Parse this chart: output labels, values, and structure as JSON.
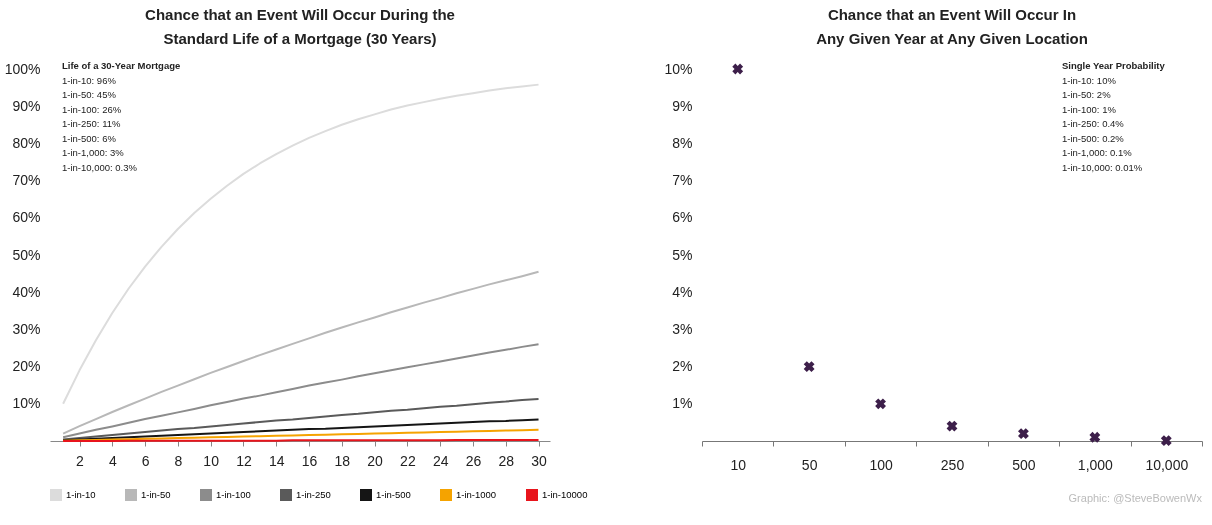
{
  "chart_data": [
    {
      "type": "line",
      "title": "Chance that an Event Will Occur During the\nStandard Life of a Mortgage (30 Years)",
      "x": [
        1,
        2,
        3,
        4,
        5,
        6,
        7,
        8,
        9,
        10,
        11,
        12,
        13,
        14,
        15,
        16,
        17,
        18,
        19,
        20,
        21,
        22,
        23,
        24,
        25,
        26,
        27,
        28,
        29,
        30
      ],
      "series": [
        {
          "name": "1-in-10",
          "color": "#dcdcdc",
          "values": [
            10,
            19,
            27.1,
            34.4,
            41,
            46.9,
            52.2,
            57,
            61.3,
            65.1,
            68.6,
            71.8,
            74.6,
            77.1,
            79.4,
            81.5,
            83.3,
            85,
            86.5,
            87.8,
            89.1,
            90.2,
            91.1,
            92,
            92.8,
            93.5,
            94.2,
            94.8,
            95.3,
            95.8
          ]
        },
        {
          "name": "1-in-50",
          "color": "#b8b8b8",
          "values": [
            2,
            4,
            5.9,
            7.8,
            9.6,
            11.4,
            13.2,
            14.9,
            16.6,
            18.3,
            19.9,
            21.5,
            23.1,
            24.6,
            26.1,
            27.6,
            29.1,
            30.5,
            31.9,
            33.2,
            34.6,
            35.9,
            37.2,
            38.4,
            39.7,
            40.9,
            42.1,
            43.2,
            44.3,
            45.5
          ]
        },
        {
          "name": "1-in-100",
          "color": "#8c8c8c",
          "values": [
            1,
            2,
            3,
            3.9,
            4.9,
            5.9,
            6.8,
            7.7,
            8.6,
            9.6,
            10.5,
            11.4,
            12.2,
            13.1,
            14,
            14.9,
            15.7,
            16.5,
            17.4,
            18.2,
            19,
            19.8,
            20.6,
            21.4,
            22.2,
            23,
            23.8,
            24.5,
            25.3,
            26
          ]
        },
        {
          "name": "1-in-250",
          "color": "#5a5a5a",
          "values": [
            0.4,
            0.8,
            1.2,
            1.6,
            2,
            2.4,
            2.8,
            3.2,
            3.5,
            3.9,
            4.3,
            4.7,
            5.1,
            5.5,
            5.8,
            6.2,
            6.6,
            7,
            7.3,
            7.7,
            8.1,
            8.4,
            8.8,
            9.2,
            9.5,
            9.9,
            10.3,
            10.6,
            11,
            11.3
          ]
        },
        {
          "name": "1-in-500",
          "color": "#151515",
          "values": [
            0.2,
            0.4,
            0.6,
            0.8,
            1,
            1.2,
            1.4,
            1.6,
            1.8,
            2,
            2.2,
            2.4,
            2.6,
            2.8,
            3,
            3.2,
            3.3,
            3.5,
            3.7,
            3.9,
            4.1,
            4.3,
            4.5,
            4.7,
            4.9,
            5.1,
            5.3,
            5.4,
            5.6,
            5.8
          ]
        },
        {
          "name": "1-in-1000",
          "color": "#f5a300",
          "values": [
            0.1,
            0.2,
            0.3,
            0.4,
            0.5,
            0.6,
            0.7,
            0.8,
            0.9,
            1,
            1.1,
            1.2,
            1.3,
            1.4,
            1.5,
            1.6,
            1.7,
            1.8,
            1.9,
            2,
            2.1,
            2.2,
            2.3,
            2.4,
            2.5,
            2.6,
            2.7,
            2.8,
            2.9,
            3
          ]
        },
        {
          "name": "1-in-10000",
          "color": "#e8141c",
          "values": [
            0,
            0,
            0,
            0,
            0.1,
            0.1,
            0.1,
            0.1,
            0.1,
            0.1,
            0.1,
            0.1,
            0.1,
            0.1,
            0.2,
            0.2,
            0.2,
            0.2,
            0.2,
            0.2,
            0.2,
            0.2,
            0.2,
            0.2,
            0.3,
            0.3,
            0.3,
            0.3,
            0.3,
            0.3
          ]
        }
      ],
      "xlim": [
        0.2,
        30.7
      ],
      "xticks": [
        2,
        4,
        6,
        8,
        10,
        12,
        14,
        16,
        18,
        20,
        22,
        24,
        26,
        28,
        30
      ],
      "ylim": [
        0,
        100
      ],
      "yticks": [
        {
          "value": 10,
          "label": "10%"
        },
        {
          "value": 20,
          "label": "20%"
        },
        {
          "value": 30,
          "label": "30%"
        },
        {
          "value": 40,
          "label": "40%"
        },
        {
          "value": 50,
          "label": "50%"
        },
        {
          "value": 60,
          "label": "60%"
        },
        {
          "value": 70,
          "label": "70%"
        },
        {
          "value": 80,
          "label": "80%"
        },
        {
          "value": 90,
          "label": "90%"
        },
        {
          "value": 100,
          "label": "100%"
        }
      ],
      "legend": "bottom",
      "annotations": [
        "Life of a 30-Year Mortgage",
        "1-in-10: 96%",
        "1-in-50: 45%",
        "1-in-100: 26%",
        "1-in-250: 11%",
        "1-in-500: 6%",
        "1-in-1,000: 3%",
        "1-in-10,000: 0.3%"
      ]
    },
    {
      "type": "scatter",
      "title": "Chance that an Event Will Occur In\nAny Given Year at Any Given Location",
      "categories": [
        "10",
        "50",
        "100",
        "250",
        "500",
        "1,000",
        "10,000"
      ],
      "series": [
        {
          "color": "#3d1f4a",
          "values": [
            10,
            2,
            1,
            0.4,
            0.2,
            0.1,
            0.01
          ]
        }
      ],
      "marker": "cross",
      "ylim": [
        0,
        10
      ],
      "yticks": [
        {
          "value": 1,
          "label": "1%"
        },
        {
          "value": 2,
          "label": "2%"
        },
        {
          "value": 3,
          "label": "3%"
        },
        {
          "value": 4,
          "label": "4%"
        },
        {
          "value": 5,
          "label": "5%"
        },
        {
          "value": 6,
          "label": "6%"
        },
        {
          "value": 7,
          "label": "7%"
        },
        {
          "value": 8,
          "label": "8%"
        },
        {
          "value": 9,
          "label": "9%"
        },
        {
          "value": 10,
          "label": "10%"
        }
      ],
      "annotations": [
        "Single Year Probability",
        "1-in-10: 10%",
        "1-in-50: 2%",
        "1-in-100: 1%",
        "1-in-250: 0.4%",
        "1-in-500: 0.2%",
        "1-in-1,000: 0.1%",
        "1-in-10,000: 0.01%",
        "Graphic: @SteveBowenWx"
      ]
    }
  ]
}
